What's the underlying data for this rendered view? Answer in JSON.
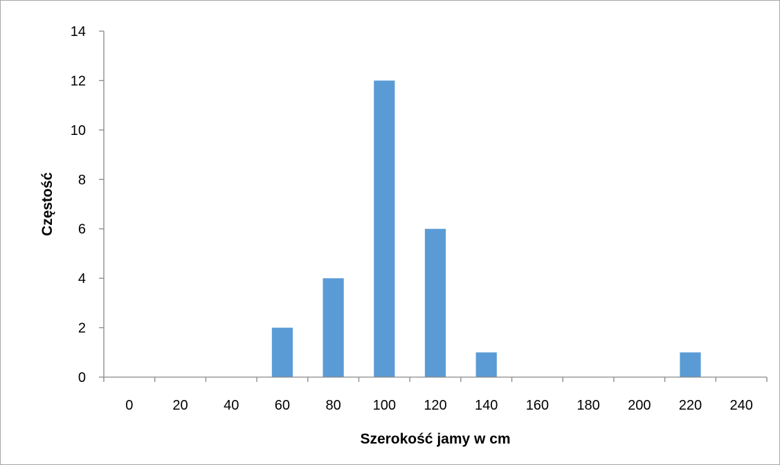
{
  "chart_data": {
    "type": "bar",
    "categories": [
      "0",
      "20",
      "40",
      "60",
      "80",
      "100",
      "120",
      "140",
      "160",
      "180",
      "200",
      "220",
      "240"
    ],
    "values": [
      0,
      0,
      0,
      2,
      4,
      12,
      6,
      1,
      0,
      0,
      0,
      1,
      0
    ],
    "xlabel": "Szerokość jamy w cm",
    "ylabel": "Częstość",
    "ylim": [
      0,
      14
    ],
    "yticks": [
      0,
      2,
      4,
      6,
      8,
      10,
      12,
      14
    ],
    "grid": false,
    "bar_color": "#5b9bd5",
    "axis_color": "#868686"
  }
}
